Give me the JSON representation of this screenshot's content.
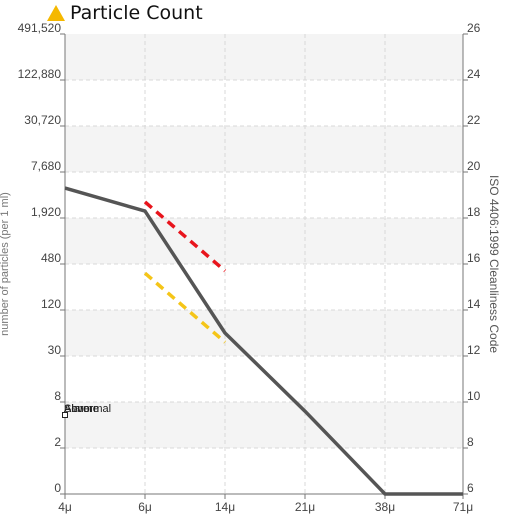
{
  "header": {
    "title": "Particle Count",
    "warning_color": "#f5b800",
    "icon": "warning-triangle-icon"
  },
  "chart_data": {
    "type": "line",
    "title": "Particle Count",
    "ylabel_left": "number of particles (per 1 ml)",
    "ylabel_right": "ISO 4406:1999 Cleanliness Code",
    "xlabel": "",
    "x_categories": [
      "4μ",
      "6μ",
      "14μ",
      "21μ",
      "38μ",
      "71μ"
    ],
    "y_left_ticks": [
      "0",
      "2",
      "8",
      "30",
      "120",
      "480",
      "1,920",
      "7,680",
      "30,720",
      "122,880",
      "491,520"
    ],
    "y_right_ticks": [
      "6",
      "8",
      "10",
      "12",
      "14",
      "16",
      "18",
      "20",
      "22",
      "24",
      "26"
    ],
    "y_right_range": [
      6,
      26
    ],
    "grid": true,
    "legend_labels": [
      "Alarm",
      "Severe",
      "Abnormal"
    ],
    "series": [
      {
        "color": "#555555",
        "points": [
          {
            "x": "4μ",
            "code": 19.3
          },
          {
            "x": "6μ",
            "code": 18.3
          },
          {
            "x": "14μ",
            "code": 13.0
          },
          {
            "x": "21μ",
            "code": 9.6
          },
          {
            "x": "38μ",
            "code": 6.0
          },
          {
            "x": "71μ",
            "code": 6.0
          }
        ]
      },
      {
        "color": "#e8141c",
        "dashed": true,
        "points": [
          {
            "x": "6μ",
            "code": 18.7
          },
          {
            "x": "14μ",
            "code": 15.7
          }
        ]
      },
      {
        "color": "#f5c518",
        "dashed": true,
        "points": [
          {
            "x": "6μ",
            "code": 15.6
          },
          {
            "x": "14μ",
            "code": 12.6
          }
        ]
      }
    ]
  }
}
